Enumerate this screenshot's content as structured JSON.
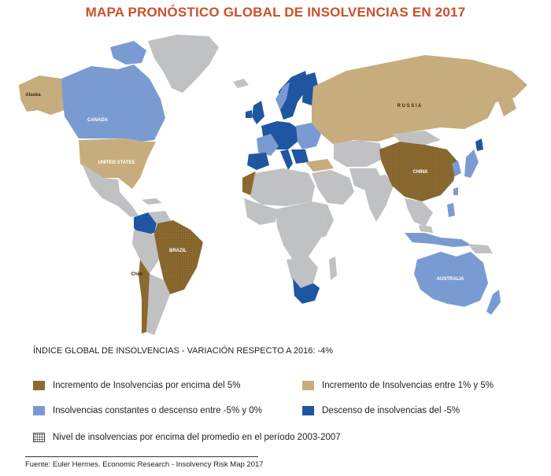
{
  "title": "MAPA PRONÓSTICO GLOBAL DE INSOLVENCIAS EN 2017",
  "colors": {
    "above_5": "#8c6a2f",
    "between_1_5": "#c7ac7d",
    "constant_or_down": "#7a9bd2",
    "down_5": "#1f56a2",
    "no_data": "#bfc1c3"
  },
  "map": {
    "labels": {
      "alaska": "Alaska",
      "canada": "CANADA",
      "united_states": "UNITED STATES",
      "russia": "R U S S I A",
      "china": "CHINA",
      "brazil": "BRAZIL",
      "chile": "Chile",
      "australia": "AUSTRALIA"
    }
  },
  "index_text": "ÍNDICE GLOBAL DE INSOLVENCIAS - VARIACIÓN RESPECTO A 2016: -4%",
  "legend": [
    {
      "key": "above_5",
      "label": "Incremento de Insolvencias por encima del 5%"
    },
    {
      "key": "between_1_5",
      "label": "Incremento de Insolvencias entre 1% y 5%"
    },
    {
      "key": "constant_or_down",
      "label": "Insolvencias constantes o descenso entre -5% y 0%"
    },
    {
      "key": "down_5",
      "label": "Descenso de insolvencias del -5%"
    },
    {
      "key": "dotted",
      "label": "Nivel de insolvencias por encima del promedio en el período 2003-2007"
    }
  ],
  "source": "Fuente: Euler Hermes. Economic Research - Insolvency Risk Map 2017"
}
